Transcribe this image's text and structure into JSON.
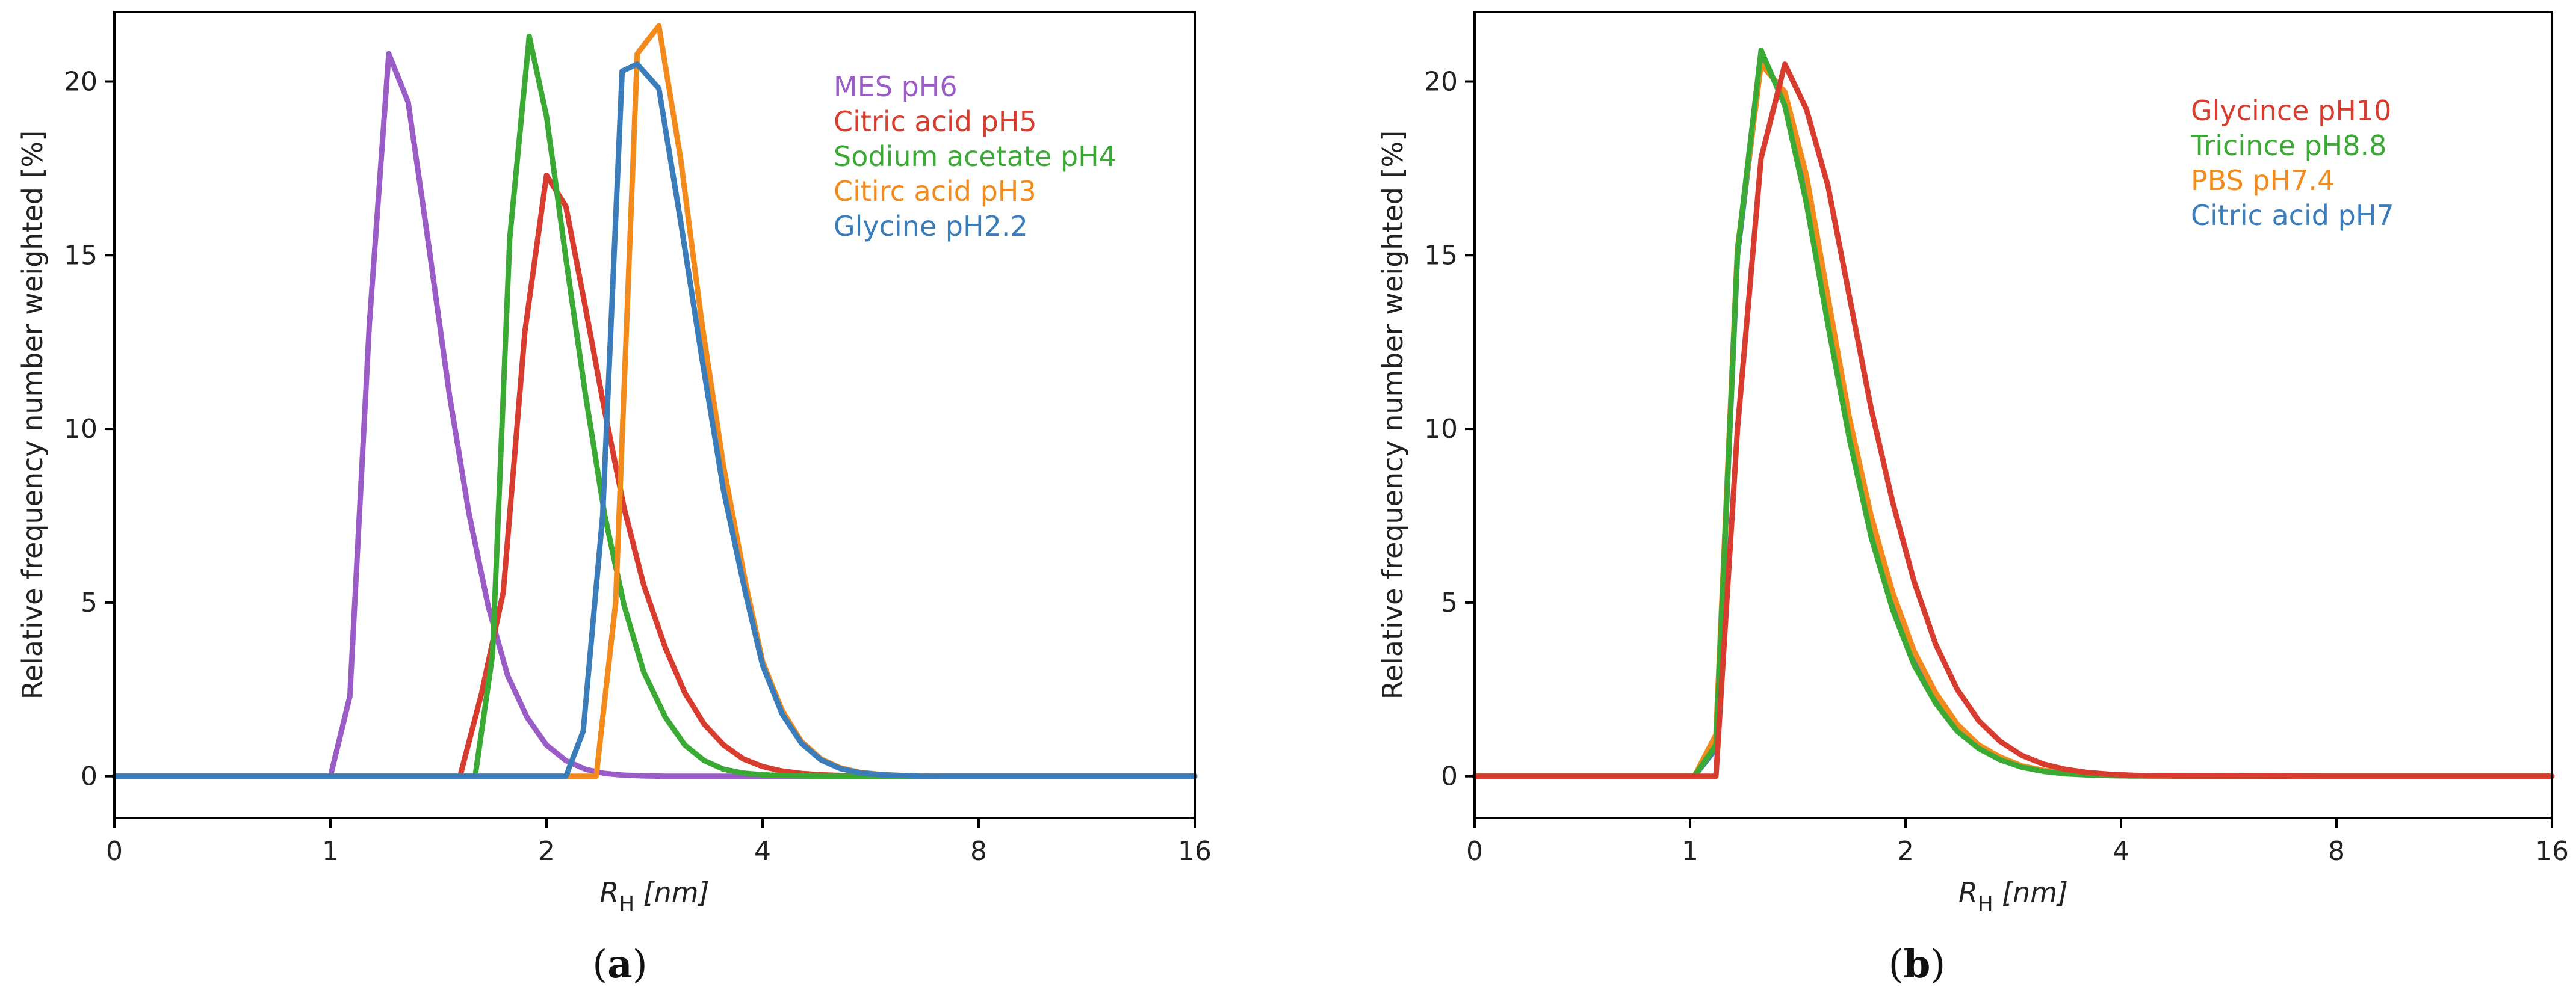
{
  "chart_data": [
    {
      "type": "line",
      "panel": "a",
      "caption_open": "(",
      "caption_letter": "a",
      "caption_close": ")",
      "xlabel_main": "R",
      "xlabel_sub": "H",
      "xlabel_unit": " [nm]",
      "ylabel": "Relative frequency number weighted [%]",
      "ylim": [
        -1.2,
        22
      ],
      "yticks": [
        0,
        5,
        10,
        15,
        20
      ],
      "xticks": [
        "0",
        "1",
        "2",
        "4",
        "8",
        "16"
      ],
      "xtick_pos": [
        0,
        1,
        2,
        3,
        4,
        5
      ],
      "xlim": [
        0,
        5
      ],
      "grid": false,
      "legend_position": "top-right",
      "series": [
        {
          "name": "MES pH6",
          "color": "#9a5cc7",
          "x": [
            0,
            1,
            1.09,
            1.18,
            1.27,
            1.36,
            1.45,
            1.55,
            1.64,
            1.73,
            1.82,
            1.91,
            2.0,
            2.09,
            2.18,
            2.27,
            2.36,
            2.45,
            2.55,
            2.64,
            2.73,
            2.82,
            3.0,
            4.0,
            5.0
          ],
          "y": [
            0,
            0,
            2.3,
            13,
            20.8,
            19.4,
            15.5,
            11,
            7.6,
            4.9,
            2.9,
            1.7,
            0.9,
            0.45,
            0.2,
            0.08,
            0.03,
            0.01,
            0,
            0,
            0,
            0,
            0,
            0,
            0
          ]
        },
        {
          "name": "Citric acid pH5",
          "color": "#d73c2f",
          "x": [
            0,
            1.6,
            1.7,
            1.8,
            1.9,
            2.0,
            2.09,
            2.18,
            2.27,
            2.36,
            2.45,
            2.55,
            2.64,
            2.73,
            2.82,
            2.91,
            3.0,
            3.09,
            3.18,
            3.27,
            3.36,
            3.45,
            3.55,
            3.64,
            3.73,
            3.82,
            4.0,
            5.0
          ],
          "y": [
            0,
            0,
            2.4,
            5.3,
            12.8,
            17.3,
            16.4,
            13.5,
            10.5,
            7.7,
            5.5,
            3.7,
            2.4,
            1.5,
            0.9,
            0.5,
            0.28,
            0.15,
            0.08,
            0.04,
            0.02,
            0.01,
            0,
            0,
            0,
            0,
            0,
            0
          ]
        },
        {
          "name": "Sodium acetate pH4",
          "color": "#3aaa35",
          "x": [
            0,
            1.67,
            1.75,
            1.83,
            1.92,
            2.0,
            2.09,
            2.18,
            2.27,
            2.36,
            2.45,
            2.55,
            2.64,
            2.73,
            2.82,
            2.91,
            3.0,
            3.09,
            3.18,
            3.27,
            3.36,
            3.45,
            4.0,
            5.0
          ],
          "y": [
            0,
            0,
            3.5,
            15.5,
            21.3,
            19.0,
            14.9,
            11.0,
            7.5,
            4.9,
            3.0,
            1.7,
            0.9,
            0.45,
            0.2,
            0.09,
            0.04,
            0.02,
            0.01,
            0,
            0,
            0,
            0,
            0
          ]
        },
        {
          "name": "Citirc acid pH3",
          "color": "#f28b1c",
          "x": [
            0,
            2.23,
            2.32,
            2.42,
            2.52,
            2.62,
            2.72,
            2.82,
            2.92,
            3.0,
            3.09,
            3.18,
            3.27,
            3.36,
            3.45,
            3.55,
            3.64,
            3.73,
            3.82,
            3.91,
            4.0,
            5.0
          ],
          "y": [
            0,
            0,
            5.0,
            20.8,
            21.6,
            17.8,
            13.0,
            8.9,
            5.6,
            3.3,
            1.9,
            1.0,
            0.5,
            0.24,
            0.11,
            0.05,
            0.02,
            0.01,
            0,
            0,
            0,
            0
          ]
        },
        {
          "name": "Glycine pH2.2",
          "color": "#3b7dbb",
          "x": [
            0,
            2.09,
            2.17,
            2.26,
            2.35,
            2.42,
            2.52,
            2.62,
            2.72,
            2.82,
            2.92,
            3.0,
            3.09,
            3.18,
            3.27,
            3.36,
            3.45,
            3.55,
            3.64,
            3.73,
            3.82,
            4.0,
            5.0
          ],
          "y": [
            0,
            0,
            1.3,
            7.5,
            20.3,
            20.5,
            19.8,
            16.0,
            12.0,
            8.2,
            5.3,
            3.2,
            1.8,
            0.95,
            0.47,
            0.22,
            0.1,
            0.04,
            0.02,
            0,
            0,
            0,
            0
          ]
        }
      ]
    },
    {
      "type": "line",
      "panel": "b",
      "caption_open": "(",
      "caption_letter": "b",
      "caption_close": ")",
      "xlabel_main": "R",
      "xlabel_sub": "H",
      "xlabel_unit": " [nm]",
      "ylabel": "Relative frequency number weighted [%]",
      "ylim": [
        -1.2,
        22
      ],
      "yticks": [
        0,
        5,
        10,
        15,
        20
      ],
      "xticks": [
        "0",
        "1",
        "2",
        "4",
        "8",
        "16"
      ],
      "xtick_pos": [
        0,
        1,
        2,
        3,
        4,
        5
      ],
      "xlim": [
        0,
        5
      ],
      "grid": false,
      "legend_position": "top-right",
      "series": [
        {
          "name": "Citric acid pH7",
          "color": "#3b7dbb",
          "x": [
            0,
            1.02,
            1.12,
            1.22,
            1.33,
            1.44,
            1.54,
            1.64,
            1.74,
            1.84,
            1.94,
            2.04,
            2.14,
            2.24,
            2.34,
            2.44,
            2.54,
            2.64,
            2.74,
            2.84,
            2.94,
            3.04,
            4.0,
            5.0
          ],
          "y": [
            0,
            0,
            0.8,
            15.0,
            20.6,
            19.6,
            17.0,
            13.5,
            10.0,
            7.2,
            5.0,
            3.4,
            2.2,
            1.4,
            0.85,
            0.5,
            0.28,
            0.15,
            0.08,
            0.04,
            0.02,
            0.01,
            0,
            0
          ]
        },
        {
          "name": "PBS pH7.4",
          "color": "#f28b1c",
          "x": [
            0,
            1.02,
            1.12,
            1.22,
            1.33,
            1.44,
            1.54,
            1.64,
            1.74,
            1.84,
            1.94,
            2.04,
            2.14,
            2.24,
            2.34,
            2.44,
            2.54,
            2.64,
            2.74,
            2.84,
            2.94,
            3.04,
            4.0,
            5.0
          ],
          "y": [
            0,
            0,
            1.2,
            15.2,
            20.5,
            19.7,
            17.3,
            13.8,
            10.3,
            7.5,
            5.3,
            3.6,
            2.4,
            1.5,
            0.9,
            0.55,
            0.3,
            0.17,
            0.09,
            0.05,
            0.02,
            0.01,
            0,
            0
          ]
        },
        {
          "name": "Tricince pH8.8",
          "color": "#3aaa35",
          "x": [
            0,
            1.02,
            1.12,
            1.22,
            1.33,
            1.44,
            1.54,
            1.64,
            1.74,
            1.84,
            1.94,
            2.04,
            2.14,
            2.24,
            2.34,
            2.44,
            2.54,
            2.64,
            2.74,
            2.84,
            2.94,
            3.04,
            4.0,
            5.0
          ],
          "y": [
            0,
            0,
            0.9,
            15.1,
            20.9,
            19.3,
            16.5,
            13.0,
            9.7,
            6.9,
            4.8,
            3.2,
            2.1,
            1.3,
            0.8,
            0.47,
            0.26,
            0.14,
            0.07,
            0.04,
            0.02,
            0.01,
            0,
            0
          ]
        },
        {
          "name": "Glycince pH10",
          "color": "#d73c2f",
          "x": [
            0,
            1.12,
            1.22,
            1.33,
            1.44,
            1.54,
            1.64,
            1.74,
            1.84,
            1.94,
            2.04,
            2.14,
            2.24,
            2.34,
            2.44,
            2.54,
            2.64,
            2.74,
            2.84,
            2.94,
            3.04,
            3.14,
            4.0,
            5.0
          ],
          "y": [
            0,
            0,
            10.0,
            17.8,
            20.5,
            19.2,
            17.0,
            13.8,
            10.6,
            7.9,
            5.6,
            3.8,
            2.5,
            1.6,
            1.0,
            0.6,
            0.35,
            0.2,
            0.11,
            0.06,
            0.03,
            0.01,
            0,
            0
          ]
        }
      ],
      "legend_order": [
        "Glycince pH10",
        "Tricince pH8.8",
        "PBS pH7.4",
        "Citric acid pH7"
      ]
    }
  ]
}
